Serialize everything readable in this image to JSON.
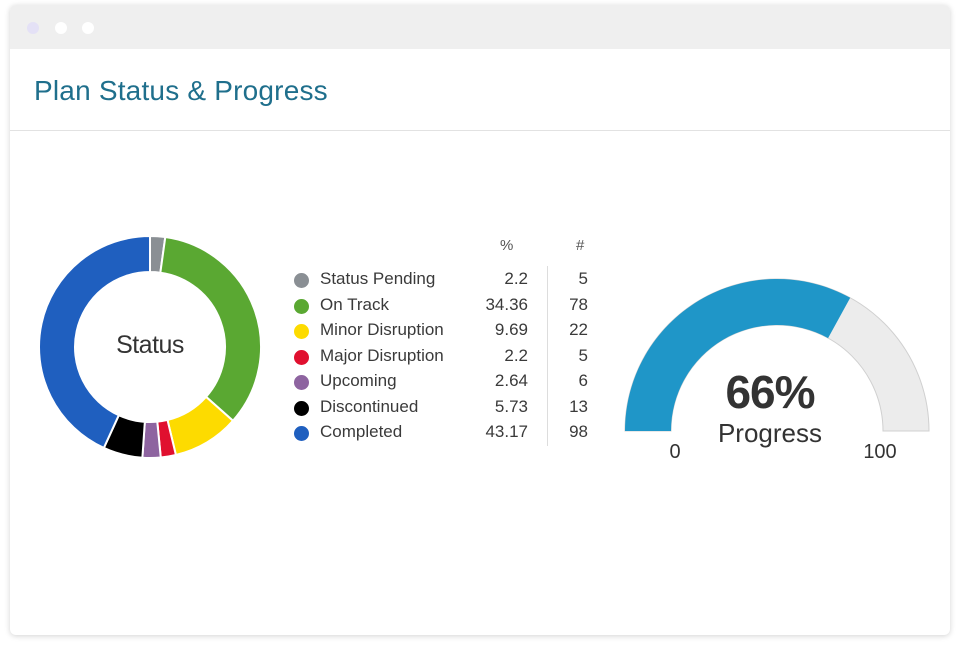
{
  "window": {
    "controls": [
      "window-dot",
      "window-dot",
      "window-dot"
    ]
  },
  "header": {
    "title": "Plan Status & Progress"
  },
  "status_chart": {
    "center_label": "Status",
    "columns": {
      "pct": "%",
      "count": "#"
    },
    "items": [
      {
        "label": "Status Pending",
        "pct": "2.2",
        "count": "5",
        "color": "#8a8f94"
      },
      {
        "label": "On Track",
        "pct": "34.36",
        "count": "78",
        "color": "#5aa832"
      },
      {
        "label": "Minor Disruption",
        "pct": "9.69",
        "count": "22",
        "color": "#fddb00"
      },
      {
        "label": "Major Disruption",
        "pct": "2.2",
        "count": "5",
        "color": "#e0102f"
      },
      {
        "label": "Upcoming",
        "pct": "2.64",
        "count": "6",
        "color": "#8e64a0"
      },
      {
        "label": "Discontinued",
        "pct": "5.73",
        "count": "13",
        "color": "#000000"
      },
      {
        "label": "Completed",
        "pct": "43.17",
        "count": "98",
        "color": "#1f5fbf"
      }
    ]
  },
  "progress_gauge": {
    "value": 66,
    "value_text": "66%",
    "label": "Progress",
    "min_label": "0",
    "max_label": "100",
    "min": 0,
    "max": 100,
    "fill_color": "#1f96c8",
    "track_color": "#ececec"
  },
  "chart_data": [
    {
      "type": "pie",
      "title": "Status",
      "categories": [
        "Status Pending",
        "On Track",
        "Minor Disruption",
        "Major Disruption",
        "Upcoming",
        "Discontinued",
        "Completed"
      ],
      "values": [
        2.2,
        34.36,
        9.69,
        2.2,
        2.64,
        5.73,
        43.17
      ],
      "counts": [
        5,
        78,
        22,
        5,
        6,
        13,
        98
      ]
    },
    {
      "type": "gauge",
      "value": 66,
      "range": [
        0,
        100
      ],
      "label": "Progress"
    }
  ]
}
